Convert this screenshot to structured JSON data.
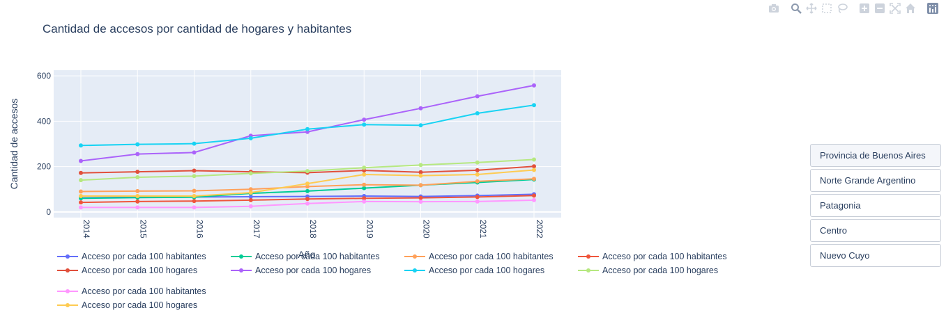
{
  "toolbar": {
    "icons": [
      "camera-icon",
      "zoom-icon",
      "pan-icon",
      "box-select-icon",
      "lasso-icon",
      "zoom-in-icon",
      "zoom-out-icon",
      "autoscale-icon",
      "reset-axes-icon",
      "plotly-logo-icon"
    ]
  },
  "buttons": [
    "Provincia de Buenos Aires",
    "Norte Grande Argentino",
    "Patagonia",
    "Centro",
    "Nuevo Cuyo"
  ],
  "active_button": "Provincia de Buenos Aires",
  "chart_data": {
    "type": "line",
    "title": "Cantidad de accesos por cantidad de hogares y habitantes",
    "xlabel": "Año",
    "ylabel": "Cantidad de accesos",
    "x": [
      2014,
      2015,
      2016,
      2017,
      2018,
      2019,
      2020,
      2021,
      2022
    ],
    "ylim": [
      -25,
      625
    ],
    "yticks": [
      0,
      200,
      400,
      600
    ],
    "grid": true,
    "legend_position": "bottom",
    "series": [
      {
        "name": "Acceso por cada 100 habitantes",
        "color": "#636efa",
        "values": [
          62,
          65,
          66,
          67,
          68,
          70,
          68,
          72,
          78
        ]
      },
      {
        "name": "Acceso por cada 100 habitantes",
        "color": "#00cc96",
        "values": [
          60,
          63,
          65,
          82,
          92,
          105,
          118,
          130,
          143
        ]
      },
      {
        "name": "Acceso por cada 100 habitantes",
        "color": "#ffa15a",
        "values": [
          90,
          92,
          93,
          100,
          112,
          120,
          118,
          135,
          146
        ]
      },
      {
        "name": "Acceso por cada 100 habitantes",
        "color": "#ef553b",
        "values": [
          42,
          46,
          48,
          52,
          57,
          60,
          62,
          66,
          72
        ]
      },
      {
        "name": "Acceso por cada 100 hogares",
        "color": "#e1503c",
        "values": [
          172,
          177,
          182,
          177,
          173,
          183,
          175,
          184,
          201
        ]
      },
      {
        "name": "Acceso por cada 100 hogares",
        "color": "#ab63fa",
        "values": [
          225,
          255,
          262,
          336,
          353,
          407,
          457,
          510,
          558
        ]
      },
      {
        "name": "Acceso por cada 100 hogares",
        "color": "#19d3f3",
        "values": [
          293,
          298,
          301,
          325,
          365,
          385,
          382,
          435,
          471
        ]
      },
      {
        "name": "Acceso por cada 100 hogares",
        "color": "#b6e880",
        "values": [
          140,
          153,
          158,
          170,
          180,
          195,
          207,
          218,
          231
        ]
      },
      {
        "name": "Acceso por cada 100 habitantes",
        "color": "#ff97ff",
        "values": [
          20,
          20,
          20,
          25,
          37,
          46,
          45,
          46,
          52
        ]
      },
      {
        "name": "Acceso por cada 100 hogares",
        "color": "#fecb52",
        "values": [
          70,
          70,
          70,
          85,
          125,
          165,
          160,
          165,
          185
        ]
      }
    ]
  }
}
